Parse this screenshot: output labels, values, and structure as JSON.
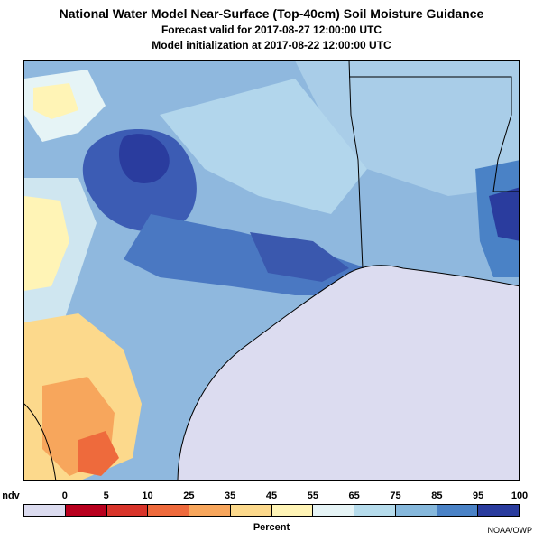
{
  "title": "National Water Model Near-Surface (Top-40cm) Soil Moisture Guidance",
  "subtitle_valid": "Forecast valid for 2017-08-27 12:00:00 UTC",
  "subtitle_init": "Model initialization at 2017-08-22 12:00:00 UTC",
  "legend": {
    "labels": [
      "ndv",
      "0",
      "5",
      "10",
      "25",
      "35",
      "45",
      "55",
      "65",
      "75",
      "85",
      "95",
      "100"
    ],
    "colors": [
      "#dcdcf0",
      "#b8001e",
      "#d8342a",
      "#ee6a3c",
      "#f7a65c",
      "#fcd98c",
      "#fff4b6",
      "#e6f4f6",
      "#b6dcec",
      "#86b8dc",
      "#4a82c6",
      "#2a3c9e"
    ],
    "unit": "Percent"
  },
  "credit": "NOAA/OWP",
  "colors": {
    "gulf": "#dcdcf0",
    "coast_line": "#000000"
  }
}
